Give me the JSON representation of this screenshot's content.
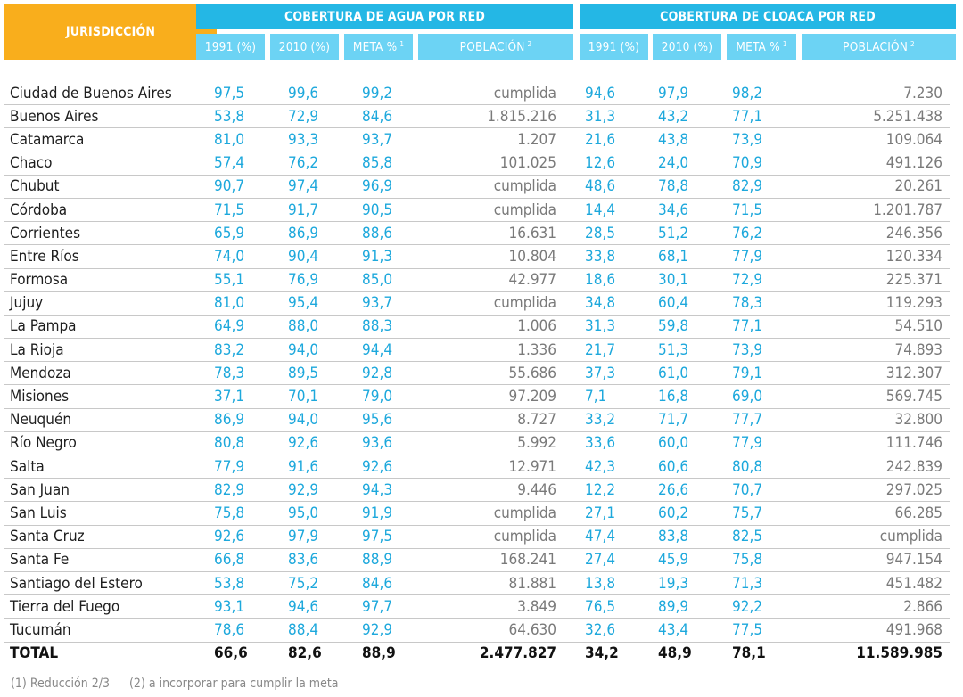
{
  "header": {
    "jurisdiction": "JURISDICCIÓN",
    "water_group": "COBERTURA DE AGUA POR RED",
    "sewer_group": "COBERTURA DE CLOACA POR RED",
    "water_columns": [
      {
        "label": "1991 (%)",
        "sup": ""
      },
      {
        "label": "2010 (%)",
        "sup": ""
      },
      {
        "label": "META %",
        "sup": "1"
      },
      {
        "label": "POBLACIÓN",
        "sup": "2"
      }
    ],
    "sewer_columns": [
      {
        "label": "1991 (%)",
        "sup": ""
      },
      {
        "label": "2010 (%)",
        "sup": ""
      },
      {
        "label": "META %",
        "sup": "1"
      },
      {
        "label": "POBLACIÓN",
        "sup": "2"
      }
    ]
  },
  "rows": [
    [
      "Ciudad de Buenos Aires",
      "97,5",
      "99,6",
      "99,2",
      "cumplida",
      "94,6",
      "97,9",
      "98,2",
      "7.230"
    ],
    [
      "Buenos Aires",
      "53,8",
      "72,9",
      "84,6",
      "1.815.216",
      "31,3",
      "43,2",
      "77,1",
      "5.251.438"
    ],
    [
      "Catamarca",
      "81,0",
      "93,3",
      "93,7",
      "1.207",
      "21,6",
      "43,8",
      "73,9",
      "109.064"
    ],
    [
      "Chaco",
      "57,4",
      "76,2",
      "85,8",
      "101.025",
      "12,6",
      "24,0",
      "70,9",
      "491.126"
    ],
    [
      "Chubut",
      "90,7",
      "97,4",
      "96,9",
      "cumplida",
      "48,6",
      "78,8",
      "82,9",
      "20.261"
    ],
    [
      "Córdoba",
      "71,5",
      "91,7",
      "90,5",
      "cumplida",
      "14,4",
      "34,6",
      "71,5",
      "1.201.787"
    ],
    [
      "Corrientes",
      "65,9",
      "86,9",
      "88,6",
      "16.631",
      "28,5",
      "51,2",
      "76,2",
      "246.356"
    ],
    [
      "Entre Ríos",
      "74,0",
      "90,4",
      "91,3",
      "10.804",
      "33,8",
      "68,1",
      "77,9",
      "120.334"
    ],
    [
      "Formosa",
      "55,1",
      "76,9",
      "85,0",
      "42.977",
      "18,6",
      "30,1",
      "72,9",
      "225.371"
    ],
    [
      "Jujuy",
      "81,0",
      "95,4",
      "93,7",
      "cumplida",
      "34,8",
      "60,4",
      "78,3",
      "119.293"
    ],
    [
      "La Pampa",
      "64,9",
      "88,0",
      "88,3",
      "1.006",
      "31,3",
      "59,8",
      "77,1",
      "54.510"
    ],
    [
      "La Rioja",
      "83,2",
      "94,0",
      "94,4",
      "1.336",
      "21,7",
      "51,3",
      "73,9",
      "74.893"
    ],
    [
      "Mendoza",
      "78,3",
      "89,5",
      "92,8",
      "55.686",
      "37,3",
      "61,0",
      "79,1",
      "312.307"
    ],
    [
      "Misiones",
      "37,1",
      "70,1",
      "79,0",
      "97.209",
      "7,1",
      "16,8",
      "69,0",
      "569.745"
    ],
    [
      "Neuquén",
      "86,9",
      "94,0",
      "95,6",
      "8.727",
      "33,2",
      "71,7",
      "77,7",
      "32.800"
    ],
    [
      "Río Negro",
      "80,8",
      "92,6",
      "93,6",
      "5.992",
      "33,6",
      "60,0",
      "77,9",
      "111.746"
    ],
    [
      "Salta",
      "77,9",
      "91,6",
      "92,6",
      "12.971",
      "42,3",
      "60,6",
      "80,8",
      "242.839"
    ],
    [
      "San Juan",
      "82,9",
      "92,9",
      "94,3",
      "9.446",
      "12,2",
      "26,6",
      "70,7",
      "297.025"
    ],
    [
      "San Luis",
      "75,8",
      "95,0",
      "91,9",
      "cumplida",
      "27,1",
      "60,2",
      "75,7",
      "66.285"
    ],
    [
      "Santa Cruz",
      "92,6",
      "97,9",
      "97,5",
      "cumplida",
      "47,4",
      "83,8",
      "82,5",
      "cumplida"
    ],
    [
      "Santa Fe",
      "66,8",
      "83,6",
      "88,9",
      "168.241",
      "27,4",
      "45,9",
      "75,8",
      "947.154"
    ],
    [
      "Santiago del Estero",
      "53,8",
      "75,2",
      "84,6",
      "81.881",
      "13,8",
      "19,3",
      "71,3",
      "451.482"
    ],
    [
      "Tierra del Fuego",
      "93,1",
      "94,6",
      "97,7",
      "3.849",
      "76,5",
      "89,9",
      "92,2",
      "2.866"
    ],
    [
      "Tucumán",
      "78,6",
      "88,4",
      "92,9",
      "64.630",
      "32,6",
      "43,4",
      "77,5",
      "491.968"
    ]
  ],
  "total": [
    "TOTAL",
    "66,6",
    "82,6",
    "88,9",
    "2.477.827",
    "34,2",
    "48,9",
    "78,1",
    "11.589.985"
  ],
  "footnotes": [
    "(1) Reducción 2/3",
    "(2) a incorporar para cumplir la meta"
  ],
  "colors": {
    "jurisdiction_header": "#f9ae1c",
    "group_header": "#24b7e5",
    "sub_header": "#6cd3f4",
    "percent_values": "#1da8dc",
    "population_values": "#7a7a7a"
  }
}
